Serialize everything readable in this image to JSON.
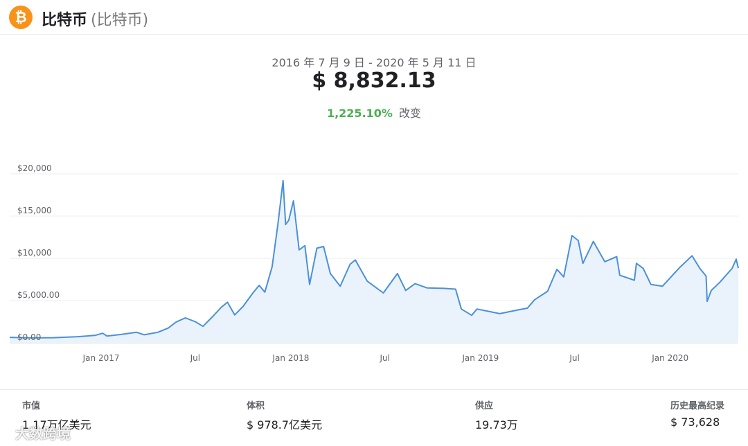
{
  "header": {
    "coin_name": "比特币",
    "coin_sub": "(比特币)",
    "logo_glyph": "₿",
    "logo_color": "#f7931a"
  },
  "summary": {
    "date_range": "2016 年 7 月 9 日 - 2020 年 5 月 11 日",
    "price": "$ 8,832.13",
    "change_pct": "1,225.10%",
    "change_label": "改变"
  },
  "chart_data": {
    "type": "area",
    "title": "",
    "xlabel": "",
    "ylabel": "",
    "line_color": "#4a90d9",
    "fill_color": "#eaf2fc",
    "ylim": [
      0,
      20000
    ],
    "yticks": [
      {
        "value": 20000,
        "label": "$20,000"
      },
      {
        "value": 15000,
        "label": "$15,000"
      },
      {
        "value": 10000,
        "label": "$10,000"
      },
      {
        "value": 5000,
        "label": "$5,000.00"
      },
      {
        "value": 0,
        "label": "$0.00"
      }
    ],
    "xticks": [
      {
        "date": "2017-01-01",
        "label": "Jan 2017"
      },
      {
        "date": "2017-07-01",
        "label": "Jul"
      },
      {
        "date": "2018-01-01",
        "label": "Jan 2018"
      },
      {
        "date": "2018-07-01",
        "label": "Jul"
      },
      {
        "date": "2019-01-01",
        "label": "Jan 2019"
      },
      {
        "date": "2019-07-01",
        "label": "Jul"
      },
      {
        "date": "2020-01-01",
        "label": "Jan 2020"
      }
    ],
    "x_start": "2016-07-09",
    "x_end": "2020-05-11",
    "series": [
      {
        "points": [
          [
            "2016-07-09",
            650
          ],
          [
            "2016-08-15",
            580
          ],
          [
            "2016-10-01",
            610
          ],
          [
            "2016-11-15",
            720
          ],
          [
            "2016-12-20",
            880
          ],
          [
            "2017-01-04",
            1130
          ],
          [
            "2017-01-12",
            800
          ],
          [
            "2017-02-10",
            1000
          ],
          [
            "2017-03-10",
            1250
          ],
          [
            "2017-03-25",
            950
          ],
          [
            "2017-04-20",
            1250
          ],
          [
            "2017-05-10",
            1750
          ],
          [
            "2017-05-25",
            2450
          ],
          [
            "2017-06-12",
            2950
          ],
          [
            "2017-07-01",
            2500
          ],
          [
            "2017-07-16",
            1950
          ],
          [
            "2017-08-05",
            3200
          ],
          [
            "2017-08-20",
            4200
          ],
          [
            "2017-09-01",
            4800
          ],
          [
            "2017-09-15",
            3300
          ],
          [
            "2017-10-01",
            4300
          ],
          [
            "2017-10-20",
            5900
          ],
          [
            "2017-11-01",
            6800
          ],
          [
            "2017-11-12",
            6000
          ],
          [
            "2017-11-26",
            9000
          ],
          [
            "2017-12-07",
            14000
          ],
          [
            "2017-12-17",
            19200
          ],
          [
            "2017-12-22",
            14000
          ],
          [
            "2017-12-28",
            14500
          ],
          [
            "2018-01-06",
            16800
          ],
          [
            "2018-01-17",
            11000
          ],
          [
            "2018-01-28",
            11500
          ],
          [
            "2018-02-06",
            6900
          ],
          [
            "2018-02-20",
            11200
          ],
          [
            "2018-03-05",
            11400
          ],
          [
            "2018-03-18",
            8200
          ],
          [
            "2018-04-06",
            6700
          ],
          [
            "2018-04-25",
            9300
          ],
          [
            "2018-05-05",
            9800
          ],
          [
            "2018-05-28",
            7300
          ],
          [
            "2018-06-28",
            5900
          ],
          [
            "2018-07-25",
            8200
          ],
          [
            "2018-08-10",
            6200
          ],
          [
            "2018-08-28",
            7000
          ],
          [
            "2018-09-20",
            6500
          ],
          [
            "2018-10-20",
            6450
          ],
          [
            "2018-11-14",
            6350
          ],
          [
            "2018-11-25",
            4000
          ],
          [
            "2018-12-15",
            3250
          ],
          [
            "2018-12-25",
            4000
          ],
          [
            "2019-02-07",
            3450
          ],
          [
            "2019-03-15",
            3900
          ],
          [
            "2019-04-01",
            4100
          ],
          [
            "2019-04-15",
            5100
          ],
          [
            "2019-05-10",
            6100
          ],
          [
            "2019-05-28",
            8700
          ],
          [
            "2019-06-10",
            7800
          ],
          [
            "2019-06-26",
            12700
          ],
          [
            "2019-07-08",
            12100
          ],
          [
            "2019-07-17",
            9400
          ],
          [
            "2019-08-06",
            12000
          ],
          [
            "2019-08-28",
            9600
          ],
          [
            "2019-09-20",
            10200
          ],
          [
            "2019-09-26",
            8000
          ],
          [
            "2019-10-24",
            7400
          ],
          [
            "2019-10-28",
            9400
          ],
          [
            "2019-11-10",
            8800
          ],
          [
            "2019-11-25",
            6900
          ],
          [
            "2019-12-17",
            6700
          ],
          [
            "2020-01-07",
            8100
          ],
          [
            "2020-01-19",
            8900
          ],
          [
            "2020-02-12",
            10300
          ],
          [
            "2020-02-27",
            8800
          ],
          [
            "2020-03-10",
            7900
          ],
          [
            "2020-03-12",
            4900
          ],
          [
            "2020-03-20",
            6200
          ],
          [
            "2020-04-06",
            7200
          ],
          [
            "2020-04-29",
            8800
          ],
          [
            "2020-05-07",
            9900
          ],
          [
            "2020-05-11",
            8832
          ]
        ]
      }
    ]
  },
  "stats": [
    {
      "label": "市值",
      "value": "1.17万亿美元"
    },
    {
      "label": "体积",
      "value": "$ 978.7亿美元"
    },
    {
      "label": "供应",
      "value": "19.73万"
    },
    {
      "label": "历史最高纪录",
      "value": "$ 73,628"
    }
  ],
  "watermark": "大数跨境"
}
